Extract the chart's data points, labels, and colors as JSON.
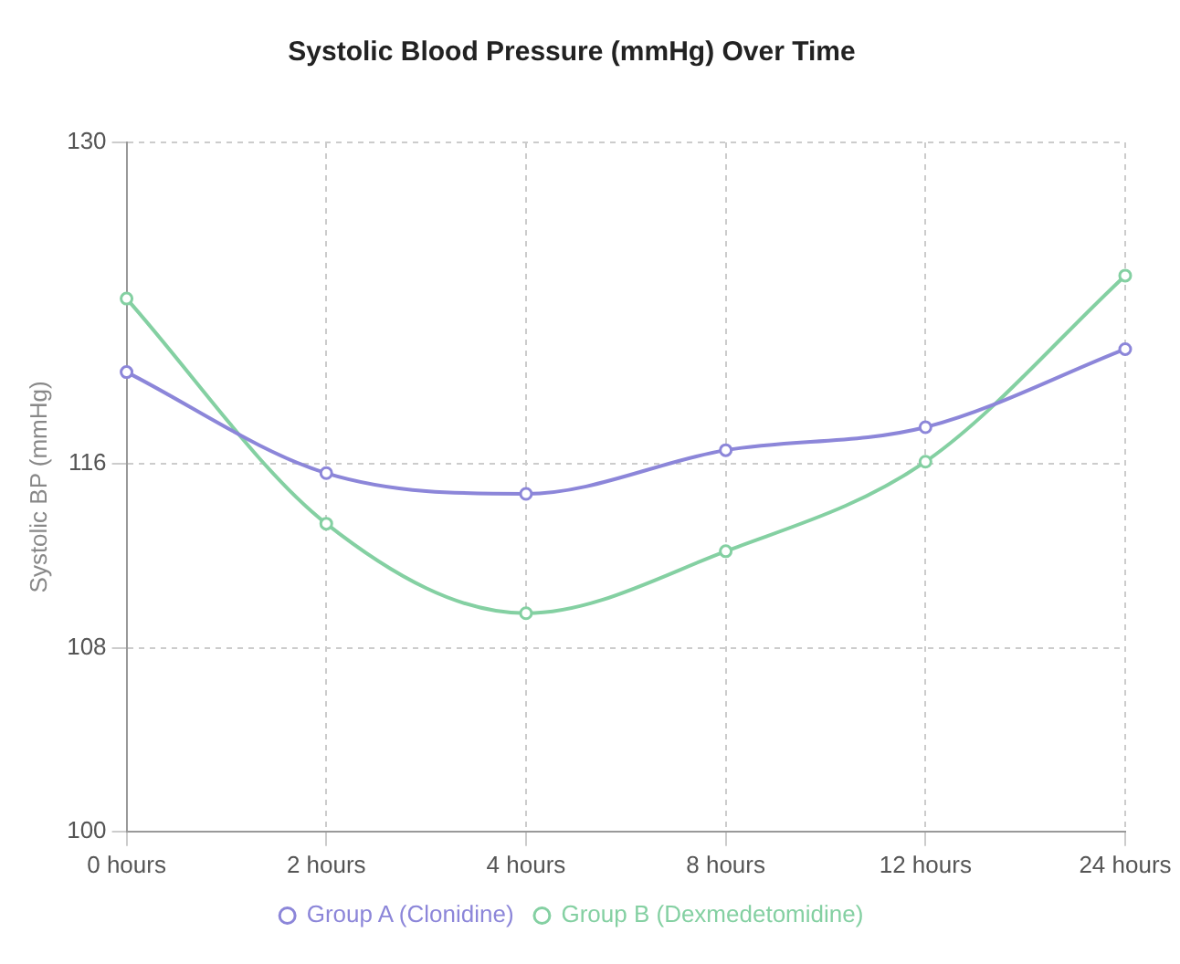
{
  "chart_data": {
    "type": "line",
    "title": "Systolic Blood Pressure (mmHg) Over Time",
    "ylabel": "Systolic BP (mmHg)",
    "categories": [
      "0 hours",
      "2 hours",
      "4 hours",
      "8 hours",
      "12 hours",
      "24 hours"
    ],
    "series": [
      {
        "name": "Group A (Clonidine)",
        "color": "#8c86d9",
        "values": [
          120.0,
          115.6,
          114.7,
          116.6,
          117.6,
          121.0
        ]
      },
      {
        "name": "Group B (Dexmedetomidine)",
        "color": "#84d0a2",
        "values": [
          123.2,
          113.4,
          109.5,
          112.2,
          116.1,
          124.2
        ]
      }
    ],
    "ylim": [
      100,
      130
    ],
    "yticks": [
      100,
      108,
      116,
      130
    ],
    "grid": true,
    "legend": "bottom",
    "marker": "circle",
    "line_style": "solid"
  }
}
